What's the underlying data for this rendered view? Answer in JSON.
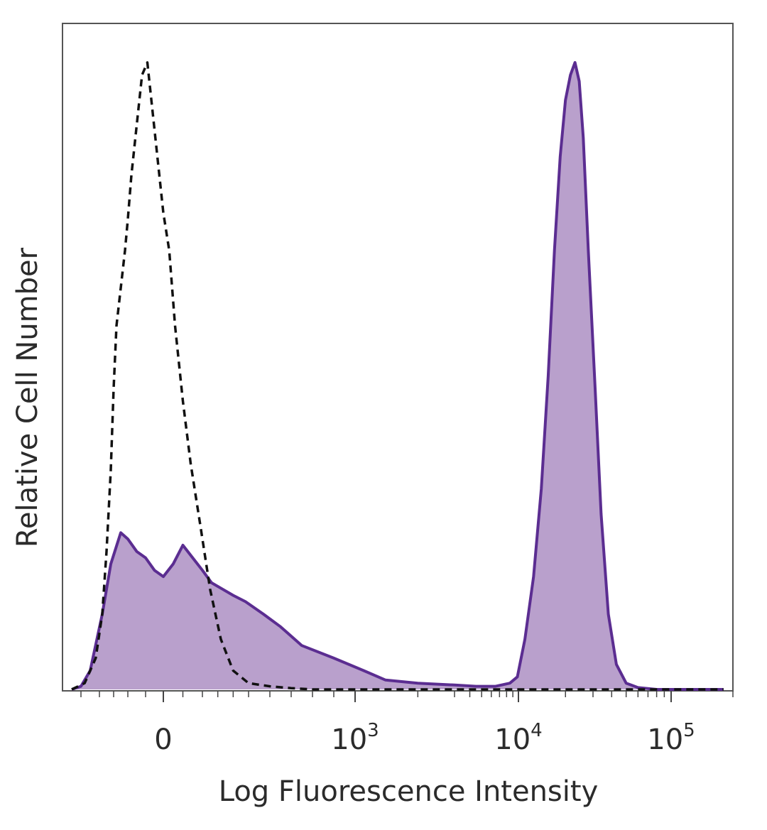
{
  "chart_data": {
    "type": "area",
    "xlabel": "Log Fluorescence Intensity",
    "ylabel": "Relative Cell Number",
    "x_scale": "biexponential",
    "xlim": [
      -600,
      200000
    ],
    "ylim": [
      0,
      100
    ],
    "grid": false,
    "x_ticks": [
      {
        "value": 0,
        "base": "0",
        "exp": ""
      },
      {
        "value": 1000,
        "base": "10",
        "exp": "3"
      },
      {
        "value": 10000,
        "base": "10",
        "exp": "4"
      },
      {
        "value": 100000,
        "base": "10",
        "exp": "5"
      }
    ],
    "colors": {
      "stained_line": "#5b2d91",
      "stained_fill": "#b9a0cc",
      "control_line": "#111111",
      "frame": "#555555"
    },
    "series": [
      {
        "style": "filled-solid",
        "x": [
          -550,
          -500,
          -450,
          -380,
          -320,
          -250,
          -200,
          -150,
          -100,
          -50,
          0,
          50,
          100,
          150,
          200,
          260,
          330,
          400,
          480,
          570,
          650,
          750,
          900,
          1100,
          1400,
          2000,
          3000,
          4500,
          6500,
          8500,
          9800,
          11000,
          12500,
          14000,
          15500,
          17000,
          18500,
          20000,
          21500,
          23000,
          24500,
          26000,
          28000,
          31000,
          34000,
          38000,
          43000,
          50000,
          60000,
          80000,
          120000,
          180000
        ],
        "y": [
          0,
          0.5,
          3,
          12,
          20,
          25,
          24,
          22,
          21,
          19,
          18,
          20,
          23,
          21,
          19,
          17,
          16,
          15,
          14,
          12,
          10,
          7,
          5,
          3,
          1.5,
          1,
          0.7,
          0.5,
          0.5,
          1,
          2,
          8,
          18,
          32,
          50,
          70,
          85,
          94,
          98,
          100,
          97,
          88,
          70,
          48,
          28,
          12,
          4,
          1,
          0.3,
          0,
          0,
          0
        ]
      },
      {
        "style": "dashed",
        "x": [
          -550,
          -480,
          -420,
          -380,
          -350,
          -320,
          -300,
          -280,
          -250,
          -220,
          -200,
          -180,
          -150,
          -120,
          -90,
          -60,
          -30,
          0,
          30,
          60,
          100,
          140,
          190,
          250,
          320,
          400,
          500,
          600,
          700,
          800,
          1000,
          1500,
          3000,
          10000,
          100000,
          180000
        ],
        "y": [
          0,
          1,
          5,
          12,
          22,
          35,
          48,
          58,
          64,
          70,
          75,
          82,
          90,
          98,
          100,
          92,
          84,
          76,
          70,
          58,
          46,
          36,
          26,
          16,
          8,
          3,
          1,
          0.5,
          0.2,
          0,
          0,
          0,
          0,
          0,
          0,
          0
        ]
      }
    ]
  }
}
